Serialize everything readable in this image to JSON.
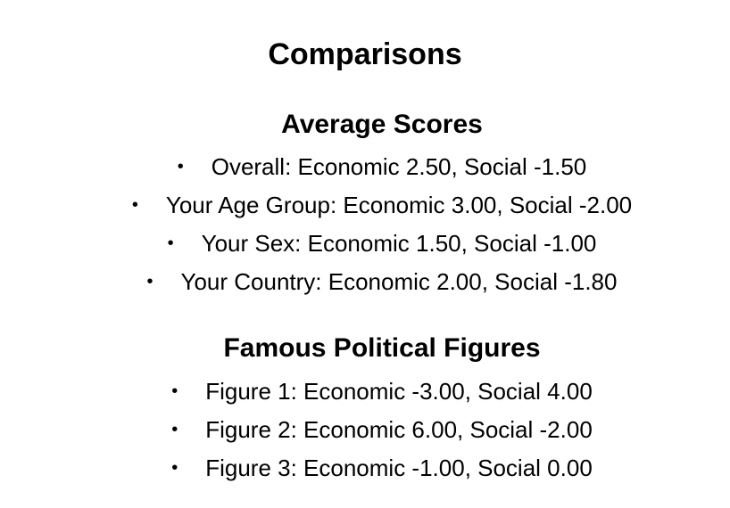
{
  "page": {
    "title": "Comparisons"
  },
  "average_scores": {
    "heading": "Average Scores",
    "items": [
      "Overall: Economic 2.50, Social -1.50",
      "Your Age Group: Economic 3.00, Social -2.00",
      "Your Sex: Economic 1.50, Social -1.00",
      "Your Country: Economic 2.00, Social -1.80"
    ]
  },
  "famous_figures": {
    "heading": "Famous Political Figures",
    "items": [
      "Figure 1: Economic -3.00, Social 4.00",
      "Figure 2: Economic 6.00, Social -2.00",
      "Figure 3: Economic -1.00, Social 0.00"
    ]
  },
  "bullet_glyph": "•"
}
